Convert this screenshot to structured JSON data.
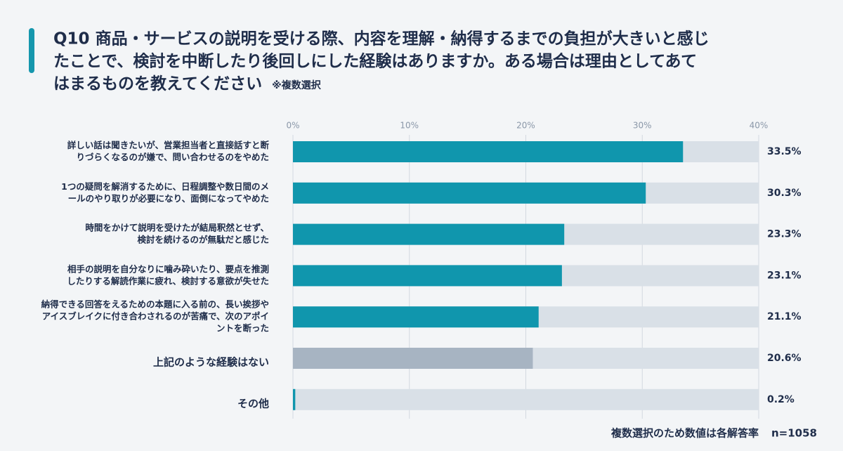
{
  "chart_data": {
    "type": "bar",
    "orientation": "horizontal",
    "title": [
      "Q10 商品・サービスの説明を受ける際、内容を理解・納得するまでの負担が大きいと感じ",
      "たことで、検討を中断したり後回しにした経験はありますか。ある場合は理由としてあて",
      "はまるものを教えてください"
    ],
    "subtitle": "※複数選択",
    "categories": [
      [
        "詳しい話は聞きたいが、営業担当者と直接話すと断",
        "りづらくなるのが嫌で、問い合わせるのをやめた"
      ],
      [
        "1つの疑問を解消するために、日程調整や数日間のメ",
        "ールのやり取りが必要になり、面倒になってやめた"
      ],
      [
        "時間をかけて説明を受けたが結局釈然とせず、",
        "検討を続けるのが無駄だと感じた"
      ],
      [
        "相手の説明を自分なりに噛み砕いたり、要点を推測",
        "したりする解読作業に疲れ、検討する意欲が失せた"
      ],
      [
        "納得できる回答をえるための本題に入る前の、長い挨拶や",
        "アイスブレイクに付き合わされるのが苦痛で、次のアポイ",
        "ントを断った"
      ],
      [
        "上記のような経験はない"
      ],
      [
        "その他"
      ]
    ],
    "values": [
      33.5,
      30.3,
      23.3,
      23.1,
      21.1,
      20.6,
      0.2
    ],
    "value_labels": [
      "33.5%",
      "30.3%",
      "23.3%",
      "23.1%",
      "21.1%",
      "20.6%",
      "0.2%"
    ],
    "colors": [
      "#1096ad",
      "#1096ad",
      "#1096ad",
      "#1096ad",
      "#1096ad",
      "#a7b4c2",
      "#1096ad"
    ],
    "track_color": "#d9e0e7",
    "xlim": [
      0,
      40
    ],
    "xticks": [
      {
        "value": 0,
        "label": "0%"
      },
      {
        "value": 10,
        "label": "10%"
      },
      {
        "value": 20,
        "label": "20%"
      },
      {
        "value": 30,
        "label": "30%"
      },
      {
        "value": 40,
        "label": "40%"
      }
    ],
    "grid": true,
    "footnote": "複数選択のため数値は各解答率",
    "sample_size": "n=1058"
  }
}
